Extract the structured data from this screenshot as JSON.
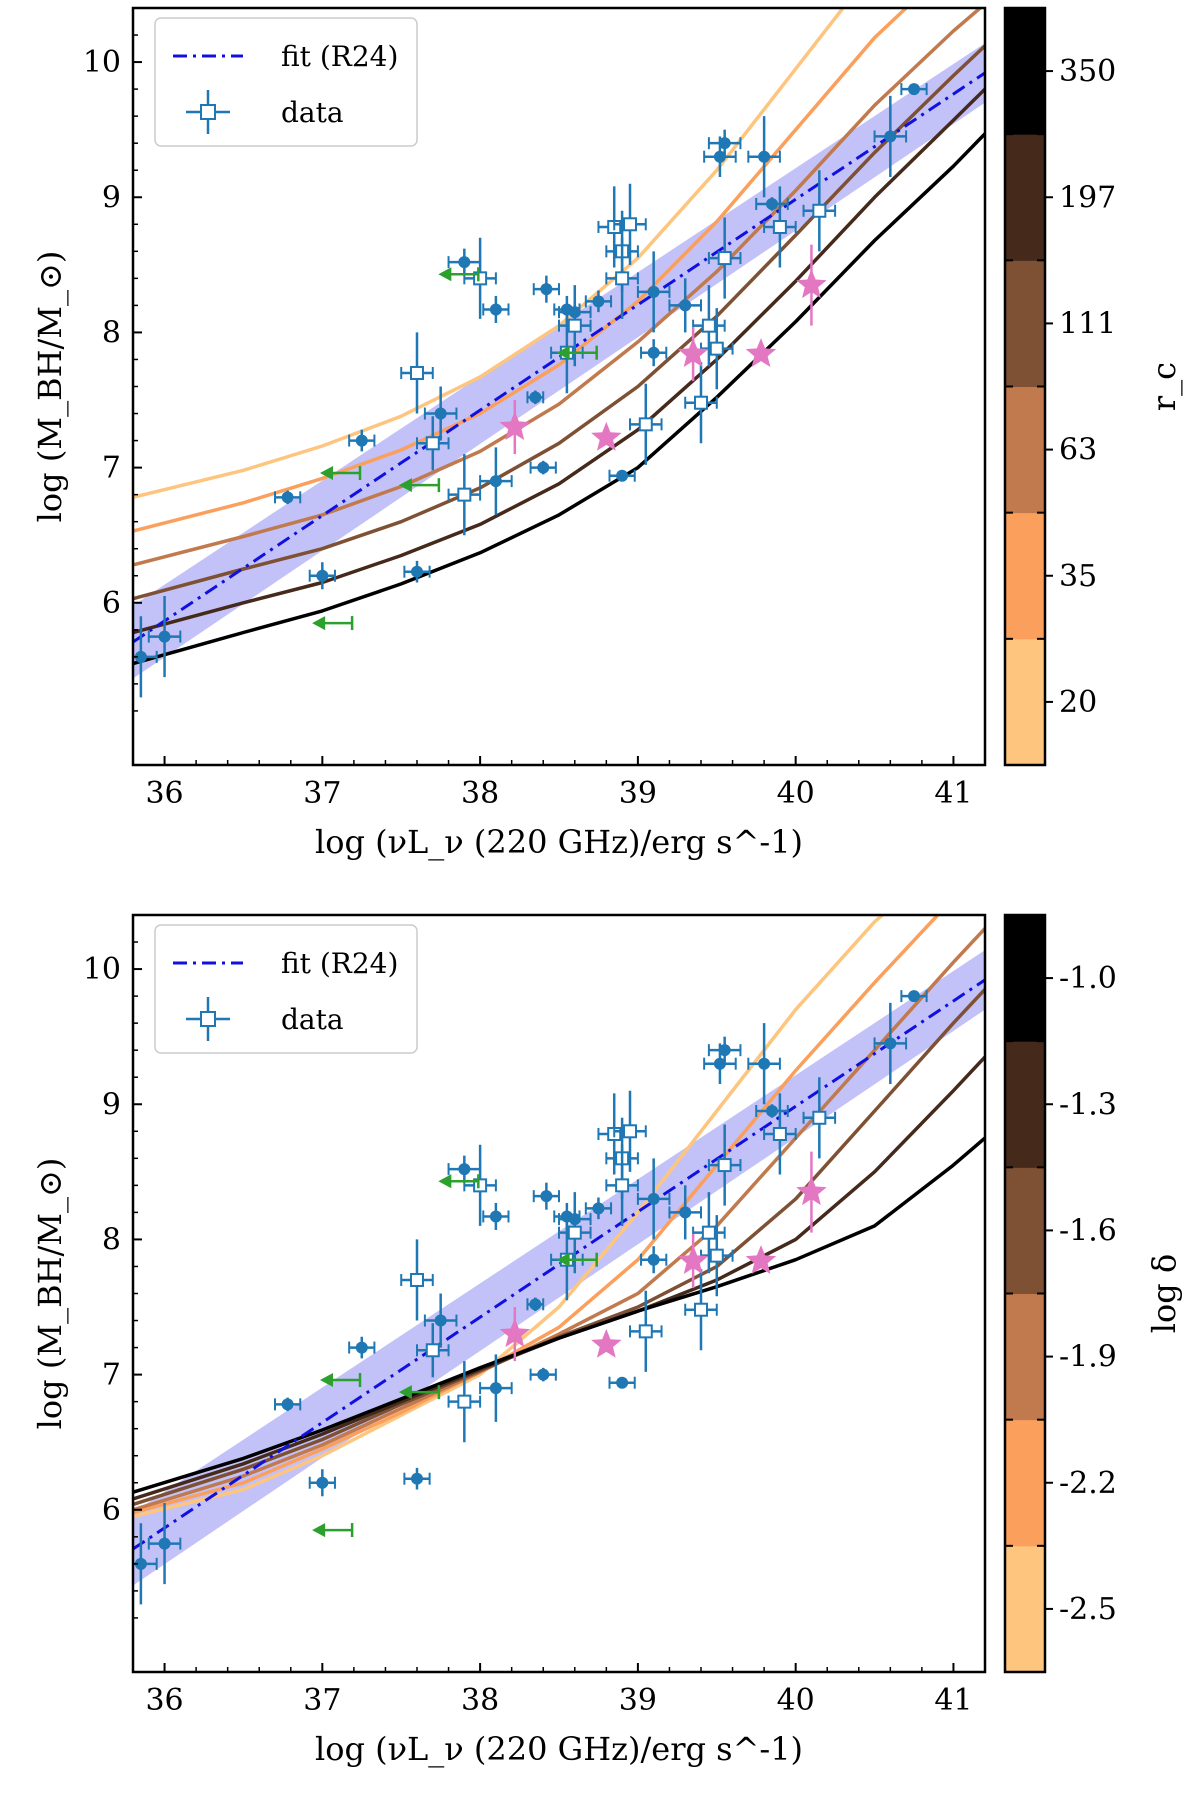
{
  "colors": {
    "fit": "#1010e0",
    "band": "#8f8ff2",
    "data": "#1f77b4",
    "stars": "#e377c2",
    "limits": "#2ca02c",
    "colormap": [
      "#fec57f",
      "#fb9f5c",
      "#c07a4e",
      "#7f5134",
      "#45291b",
      "#000000"
    ]
  },
  "chart_data": [
    {
      "type": "line",
      "xlabel": "log (νL_ν (220 GHz)/erg s^-1)",
      "ylabel": "log (M_BH/M_⊙)",
      "xlim": [
        35.8,
        41.2
      ],
      "ylim": [
        4.8,
        10.4
      ],
      "xticks": [
        "36",
        "37",
        "38",
        "39",
        "40",
        "41"
      ],
      "yticks": [
        "6",
        "7",
        "8",
        "9",
        "10"
      ],
      "legend": {
        "position": "top-left",
        "fit_label": "fit (R24)",
        "data_label": "data"
      },
      "colorbar": {
        "label": "r_c",
        "ticks": [
          "20",
          "35",
          "63",
          "111",
          "197",
          "350"
        ]
      },
      "series": [
        {
          "value": "20",
          "color": "#fec57f",
          "x": [
            35.8,
            36.5,
            37.0,
            37.5,
            38.0,
            38.5,
            39.0,
            39.5,
            40.0,
            40.3
          ],
          "y": [
            6.78,
            6.98,
            7.16,
            7.38,
            7.67,
            8.05,
            8.55,
            9.2,
            9.95,
            10.4
          ]
        },
        {
          "value": "35",
          "color": "#fb9f5c",
          "x": [
            35.8,
            36.5,
            37.0,
            37.5,
            38.0,
            38.5,
            39.0,
            39.5,
            40.0,
            40.5,
            40.7
          ],
          "y": [
            6.53,
            6.74,
            6.92,
            7.13,
            7.4,
            7.76,
            8.23,
            8.82,
            9.5,
            10.18,
            10.4
          ]
        },
        {
          "value": "63",
          "color": "#c07a4e",
          "x": [
            35.8,
            36.5,
            37.0,
            37.5,
            38.0,
            38.5,
            39.0,
            39.5,
            40.0,
            40.5,
            41.0,
            41.2
          ],
          "y": [
            6.28,
            6.49,
            6.65,
            6.86,
            7.12,
            7.47,
            7.93,
            8.45,
            9.05,
            9.68,
            10.23,
            10.43
          ]
        },
        {
          "value": "111",
          "color": "#7f5134",
          "x": [
            35.8,
            36.5,
            37.0,
            37.5,
            38.0,
            38.5,
            39.0,
            39.5,
            40.0,
            40.5,
            41.0,
            41.2
          ],
          "y": [
            6.03,
            6.25,
            6.4,
            6.6,
            6.85,
            7.18,
            7.6,
            8.12,
            8.72,
            9.33,
            9.9,
            10.12
          ]
        },
        {
          "value": "197",
          "color": "#45291b",
          "x": [
            35.8,
            36.5,
            37.0,
            37.5,
            38.0,
            38.5,
            39.0,
            39.5,
            40.0,
            40.5,
            41.0,
            41.2
          ],
          "y": [
            5.78,
            6.0,
            6.15,
            6.35,
            6.58,
            6.88,
            7.28,
            7.8,
            8.38,
            9.0,
            9.57,
            9.8
          ]
        },
        {
          "value": "350",
          "color": "#000000",
          "x": [
            35.8,
            36.5,
            37.0,
            37.5,
            38.0,
            38.5,
            39.0,
            39.5,
            40.0,
            40.5,
            41.0,
            41.2
          ],
          "y": [
            5.55,
            5.78,
            5.94,
            6.14,
            6.37,
            6.65,
            7.0,
            7.52,
            8.08,
            8.68,
            9.23,
            9.47
          ]
        }
      ],
      "fit": {
        "x": [
          35.8,
          41.2
        ],
        "y": [
          5.71,
          9.92
        ],
        "band_halfwidth": 0.22
      },
      "data_filled": [
        {
          "x": 35.85,
          "y": 5.6,
          "xerr": 0.1,
          "yerr": 0.3
        },
        {
          "x": 36.0,
          "y": 5.75,
          "xerr": 0.1,
          "yerr": 0.3
        },
        {
          "x": 36.78,
          "y": 6.78,
          "xerr": 0.08,
          "yerr": 0.05
        },
        {
          "x": 37.0,
          "y": 6.2,
          "xerr": 0.08,
          "yerr": 0.1
        },
        {
          "x": 37.25,
          "y": 7.2,
          "xerr": 0.08,
          "yerr": 0.08
        },
        {
          "x": 37.6,
          "y": 6.23,
          "xerr": 0.08,
          "yerr": 0.08
        },
        {
          "x": 37.75,
          "y": 7.4,
          "xerr": 0.1,
          "yerr": 0.2
        },
        {
          "x": 37.9,
          "y": 8.52,
          "xerr": 0.1,
          "yerr": 0.1
        },
        {
          "x": 38.1,
          "y": 6.9,
          "xerr": 0.1,
          "yerr": 0.25
        },
        {
          "x": 38.1,
          "y": 8.17,
          "xerr": 0.08,
          "yerr": 0.1
        },
        {
          "x": 38.35,
          "y": 7.52,
          "xerr": 0.05,
          "yerr": 0.05
        },
        {
          "x": 38.4,
          "y": 7.0,
          "xerr": 0.08,
          "yerr": 0.05
        },
        {
          "x": 38.42,
          "y": 8.32,
          "xerr": 0.08,
          "yerr": 0.1
        },
        {
          "x": 38.55,
          "y": 8.17,
          "xerr": 0.08,
          "yerr": 0.1
        },
        {
          "x": 38.6,
          "y": 8.15,
          "xerr": 0.1,
          "yerr": 0.1
        },
        {
          "x": 38.75,
          "y": 8.23,
          "xerr": 0.08,
          "yerr": 0.08
        },
        {
          "x": 38.9,
          "y": 6.94,
          "xerr": 0.08,
          "yerr": 0.03
        },
        {
          "x": 39.1,
          "y": 7.85,
          "xerr": 0.08,
          "yerr": 0.1
        },
        {
          "x": 39.1,
          "y": 8.3,
          "xerr": 0.1,
          "yerr": 0.3
        },
        {
          "x": 39.3,
          "y": 8.2,
          "xerr": 0.1,
          "yerr": 0.2
        },
        {
          "x": 39.52,
          "y": 9.3,
          "xerr": 0.1,
          "yerr": 0.15
        },
        {
          "x": 39.55,
          "y": 9.4,
          "xerr": 0.1,
          "yerr": 0.1
        },
        {
          "x": 39.8,
          "y": 9.3,
          "xerr": 0.1,
          "yerr": 0.3
        },
        {
          "x": 39.85,
          "y": 8.95,
          "xerr": 0.1,
          "yerr": 0.05
        },
        {
          "x": 40.6,
          "y": 9.45,
          "xerr": 0.1,
          "yerr": 0.3
        },
        {
          "x": 40.75,
          "y": 9.8,
          "xerr": 0.08,
          "yerr": 0.03
        }
      ],
      "data_open": [
        {
          "x": 37.6,
          "y": 7.7,
          "xerr": 0.1,
          "yerr": 0.3
        },
        {
          "x": 37.7,
          "y": 7.18,
          "xerr": 0.1,
          "yerr": 0.2
        },
        {
          "x": 37.9,
          "y": 6.8,
          "xerr": 0.1,
          "yerr": 0.3
        },
        {
          "x": 38.0,
          "y": 8.4,
          "xerr": 0.1,
          "yerr": 0.3
        },
        {
          "x": 38.55,
          "y": 7.85,
          "xerr": 0.1,
          "yerr": 0.3
        },
        {
          "x": 38.6,
          "y": 8.05,
          "xerr": 0.1,
          "yerr": 0.3
        },
        {
          "x": 38.85,
          "y": 8.78,
          "xerr": 0.1,
          "yerr": 0.3
        },
        {
          "x": 38.9,
          "y": 8.6,
          "xerr": 0.1,
          "yerr": 0.3
        },
        {
          "x": 38.95,
          "y": 8.8,
          "xerr": 0.1,
          "yerr": 0.3
        },
        {
          "x": 38.9,
          "y": 8.4,
          "xerr": 0.1,
          "yerr": 0.3
        },
        {
          "x": 39.05,
          "y": 7.32,
          "xerr": 0.1,
          "yerr": 0.3
        },
        {
          "x": 39.4,
          "y": 7.48,
          "xerr": 0.1,
          "yerr": 0.3
        },
        {
          "x": 39.45,
          "y": 8.05,
          "xerr": 0.1,
          "yerr": 0.3
        },
        {
          "x": 39.5,
          "y": 7.88,
          "xerr": 0.1,
          "yerr": 0.3
        },
        {
          "x": 39.55,
          "y": 8.55,
          "xerr": 0.1,
          "yerr": 0.3
        },
        {
          "x": 39.9,
          "y": 8.78,
          "xerr": 0.1,
          "yerr": 0.3
        },
        {
          "x": 40.15,
          "y": 8.9,
          "xerr": 0.1,
          "yerr": 0.3
        }
      ],
      "stars": [
        {
          "x": 38.22,
          "y": 7.3,
          "yerr": 0.2
        },
        {
          "x": 38.8,
          "y": 7.22,
          "yerr": 0.05
        },
        {
          "x": 39.35,
          "y": 7.84,
          "yerr": 0.2
        },
        {
          "x": 39.78,
          "y": 7.84,
          "yerr": 0.05
        },
        {
          "x": 40.1,
          "y": 8.35,
          "yerr": 0.3
        }
      ],
      "upper_limits": [
        {
          "x": 37.1,
          "y": 5.85
        },
        {
          "x": 37.15,
          "y": 6.96
        },
        {
          "x": 37.65,
          "y": 6.87
        },
        {
          "x": 37.9,
          "y": 8.43
        },
        {
          "x": 38.65,
          "y": 7.85
        }
      ]
    },
    {
      "type": "line",
      "xlabel": "log (νL_ν (220 GHz)/erg s^-1)",
      "ylabel": "log (M_BH/M_⊙)",
      "xlim": [
        35.8,
        41.2
      ],
      "ylim": [
        4.8,
        10.4
      ],
      "xticks": [
        "36",
        "37",
        "38",
        "39",
        "40",
        "41"
      ],
      "yticks": [
        "6",
        "7",
        "8",
        "9",
        "10"
      ],
      "legend": {
        "position": "top-left",
        "fit_label": "fit (R24)",
        "data_label": "data"
      },
      "colorbar": {
        "label": "log δ",
        "ticks": [
          "-2.5",
          "-2.2",
          "-1.9",
          "-1.6",
          "-1.3",
          "-1.0"
        ]
      },
      "series": [
        {
          "value": "-2.5",
          "color": "#fec57f",
          "x": [
            35.8,
            36.5,
            37.0,
            37.5,
            38.0,
            38.5,
            39.0,
            39.5,
            40.0,
            40.5,
            40.6
          ],
          "y": [
            5.95,
            6.15,
            6.4,
            6.7,
            7.0,
            7.5,
            8.2,
            8.95,
            9.7,
            10.35,
            10.45
          ]
        },
        {
          "value": "-2.2",
          "color": "#fb9f5c",
          "x": [
            35.8,
            36.5,
            37.0,
            37.5,
            38.0,
            38.5,
            39.0,
            39.5,
            40.0,
            40.5,
            40.9
          ],
          "y": [
            5.98,
            6.2,
            6.45,
            6.72,
            7.02,
            7.35,
            7.85,
            8.55,
            9.25,
            9.9,
            10.4
          ]
        },
        {
          "value": "-1.9",
          "color": "#c07a4e",
          "x": [
            35.8,
            36.5,
            37.0,
            37.5,
            38.0,
            38.5,
            39.0,
            39.5,
            40.0,
            40.5,
            41.0,
            41.2
          ],
          "y": [
            6.0,
            6.25,
            6.48,
            6.75,
            7.02,
            7.3,
            7.6,
            8.1,
            8.75,
            9.4,
            10.05,
            10.3
          ]
        },
        {
          "value": "-1.6",
          "color": "#7f5134",
          "x": [
            35.8,
            36.5,
            37.0,
            37.5,
            38.0,
            38.5,
            39.0,
            39.5,
            40.0,
            40.5,
            41.0,
            41.2
          ],
          "y": [
            6.04,
            6.3,
            6.52,
            6.78,
            7.03,
            7.28,
            7.5,
            7.8,
            8.3,
            8.95,
            9.6,
            9.85
          ]
        },
        {
          "value": "-1.3",
          "color": "#45291b",
          "x": [
            35.8,
            36.5,
            37.0,
            37.5,
            38.0,
            38.5,
            39.0,
            39.5,
            40.0,
            40.5,
            41.0,
            41.2
          ],
          "y": [
            6.08,
            6.34,
            6.56,
            6.8,
            7.04,
            7.27,
            7.47,
            7.7,
            8.0,
            8.5,
            9.1,
            9.35
          ]
        },
        {
          "value": "-1.0",
          "color": "#000000",
          "x": [
            35.8,
            36.5,
            37.0,
            37.5,
            38.0,
            38.5,
            39.0,
            39.5,
            40.0,
            40.5,
            41.0,
            41.2
          ],
          "y": [
            6.13,
            6.38,
            6.59,
            6.82,
            7.05,
            7.27,
            7.47,
            7.65,
            7.85,
            8.1,
            8.55,
            8.75
          ]
        }
      ],
      "fit": {
        "x": [
          35.8,
          41.2
        ],
        "y": [
          5.71,
          9.92
        ],
        "band_halfwidth": 0.22
      },
      "data_filled": [
        {
          "x": 35.85,
          "y": 5.6,
          "xerr": 0.1,
          "yerr": 0.3
        },
        {
          "x": 36.0,
          "y": 5.75,
          "xerr": 0.1,
          "yerr": 0.3
        },
        {
          "x": 36.78,
          "y": 6.78,
          "xerr": 0.08,
          "yerr": 0.05
        },
        {
          "x": 37.0,
          "y": 6.2,
          "xerr": 0.08,
          "yerr": 0.1
        },
        {
          "x": 37.25,
          "y": 7.2,
          "xerr": 0.08,
          "yerr": 0.08
        },
        {
          "x": 37.6,
          "y": 6.23,
          "xerr": 0.08,
          "yerr": 0.08
        },
        {
          "x": 37.75,
          "y": 7.4,
          "xerr": 0.1,
          "yerr": 0.2
        },
        {
          "x": 37.9,
          "y": 8.52,
          "xerr": 0.1,
          "yerr": 0.1
        },
        {
          "x": 38.1,
          "y": 6.9,
          "xerr": 0.1,
          "yerr": 0.25
        },
        {
          "x": 38.1,
          "y": 8.17,
          "xerr": 0.08,
          "yerr": 0.1
        },
        {
          "x": 38.35,
          "y": 7.52,
          "xerr": 0.05,
          "yerr": 0.05
        },
        {
          "x": 38.4,
          "y": 7.0,
          "xerr": 0.08,
          "yerr": 0.05
        },
        {
          "x": 38.42,
          "y": 8.32,
          "xerr": 0.08,
          "yerr": 0.1
        },
        {
          "x": 38.55,
          "y": 8.17,
          "xerr": 0.08,
          "yerr": 0.1
        },
        {
          "x": 38.6,
          "y": 8.15,
          "xerr": 0.1,
          "yerr": 0.1
        },
        {
          "x": 38.75,
          "y": 8.23,
          "xerr": 0.08,
          "yerr": 0.08
        },
        {
          "x": 38.9,
          "y": 6.94,
          "xerr": 0.08,
          "yerr": 0.03
        },
        {
          "x": 39.1,
          "y": 7.85,
          "xerr": 0.08,
          "yerr": 0.1
        },
        {
          "x": 39.1,
          "y": 8.3,
          "xerr": 0.1,
          "yerr": 0.3
        },
        {
          "x": 39.3,
          "y": 8.2,
          "xerr": 0.1,
          "yerr": 0.2
        },
        {
          "x": 39.52,
          "y": 9.3,
          "xerr": 0.1,
          "yerr": 0.15
        },
        {
          "x": 39.55,
          "y": 9.4,
          "xerr": 0.1,
          "yerr": 0.1
        },
        {
          "x": 39.8,
          "y": 9.3,
          "xerr": 0.1,
          "yerr": 0.3
        },
        {
          "x": 39.85,
          "y": 8.95,
          "xerr": 0.1,
          "yerr": 0.05
        },
        {
          "x": 40.6,
          "y": 9.45,
          "xerr": 0.1,
          "yerr": 0.3
        },
        {
          "x": 40.75,
          "y": 9.8,
          "xerr": 0.08,
          "yerr": 0.03
        }
      ],
      "data_open": [
        {
          "x": 37.6,
          "y": 7.7,
          "xerr": 0.1,
          "yerr": 0.3
        },
        {
          "x": 37.7,
          "y": 7.18,
          "xerr": 0.1,
          "yerr": 0.2
        },
        {
          "x": 37.9,
          "y": 6.8,
          "xerr": 0.1,
          "yerr": 0.3
        },
        {
          "x": 38.0,
          "y": 8.4,
          "xerr": 0.1,
          "yerr": 0.3
        },
        {
          "x": 38.55,
          "y": 7.85,
          "xerr": 0.1,
          "yerr": 0.3
        },
        {
          "x": 38.6,
          "y": 8.05,
          "xerr": 0.1,
          "yerr": 0.3
        },
        {
          "x": 38.85,
          "y": 8.78,
          "xerr": 0.1,
          "yerr": 0.3
        },
        {
          "x": 38.9,
          "y": 8.6,
          "xerr": 0.1,
          "yerr": 0.3
        },
        {
          "x": 38.95,
          "y": 8.8,
          "xerr": 0.1,
          "yerr": 0.3
        },
        {
          "x": 38.9,
          "y": 8.4,
          "xerr": 0.1,
          "yerr": 0.3
        },
        {
          "x": 39.05,
          "y": 7.32,
          "xerr": 0.1,
          "yerr": 0.3
        },
        {
          "x": 39.4,
          "y": 7.48,
          "xerr": 0.1,
          "yerr": 0.3
        },
        {
          "x": 39.45,
          "y": 8.05,
          "xerr": 0.1,
          "yerr": 0.3
        },
        {
          "x": 39.5,
          "y": 7.88,
          "xerr": 0.1,
          "yerr": 0.3
        },
        {
          "x": 39.55,
          "y": 8.55,
          "xerr": 0.1,
          "yerr": 0.3
        },
        {
          "x": 39.9,
          "y": 8.78,
          "xerr": 0.1,
          "yerr": 0.3
        },
        {
          "x": 40.15,
          "y": 8.9,
          "xerr": 0.1,
          "yerr": 0.3
        }
      ],
      "stars": [
        {
          "x": 38.22,
          "y": 7.3,
          "yerr": 0.2
        },
        {
          "x": 38.8,
          "y": 7.22,
          "yerr": 0.05
        },
        {
          "x": 39.35,
          "y": 7.84,
          "yerr": 0.2
        },
        {
          "x": 39.78,
          "y": 7.84,
          "yerr": 0.05
        },
        {
          "x": 40.1,
          "y": 8.35,
          "yerr": 0.3
        }
      ],
      "upper_limits": [
        {
          "x": 37.1,
          "y": 5.85
        },
        {
          "x": 37.15,
          "y": 6.96
        },
        {
          "x": 37.65,
          "y": 6.87
        },
        {
          "x": 37.9,
          "y": 8.43
        },
        {
          "x": 38.65,
          "y": 7.85
        }
      ]
    }
  ]
}
